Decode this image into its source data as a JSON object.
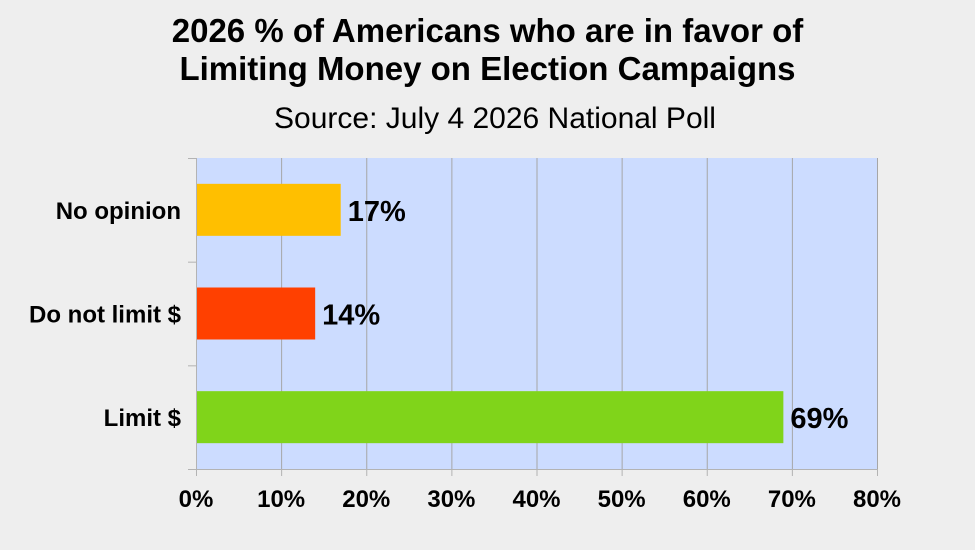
{
  "chart_data": {
    "type": "bar",
    "orientation": "horizontal",
    "title_lines": [
      "2026 % of Americans who are in favor of",
      "Limiting Money on Election Campaigns"
    ],
    "subtitle": "Source: July 4 2026 National Poll",
    "categories": [
      "No opinion",
      "Do not limit $",
      "Limit $"
    ],
    "values": [
      17,
      14,
      69
    ],
    "data_labels": [
      "17%",
      "14%",
      "69%"
    ],
    "bar_colors": [
      "#ffbf00",
      "#ff4000",
      "#80d41a"
    ],
    "xlim": [
      0,
      80
    ],
    "xticks": [
      0,
      10,
      20,
      30,
      40,
      50,
      60,
      70,
      80
    ],
    "xtick_labels": [
      "0%",
      "10%",
      "20%",
      "30%",
      "40%",
      "50%",
      "60%",
      "70%",
      "80%"
    ],
    "plot_background": "#ccdcff",
    "grid": true,
    "legend": "none"
  }
}
